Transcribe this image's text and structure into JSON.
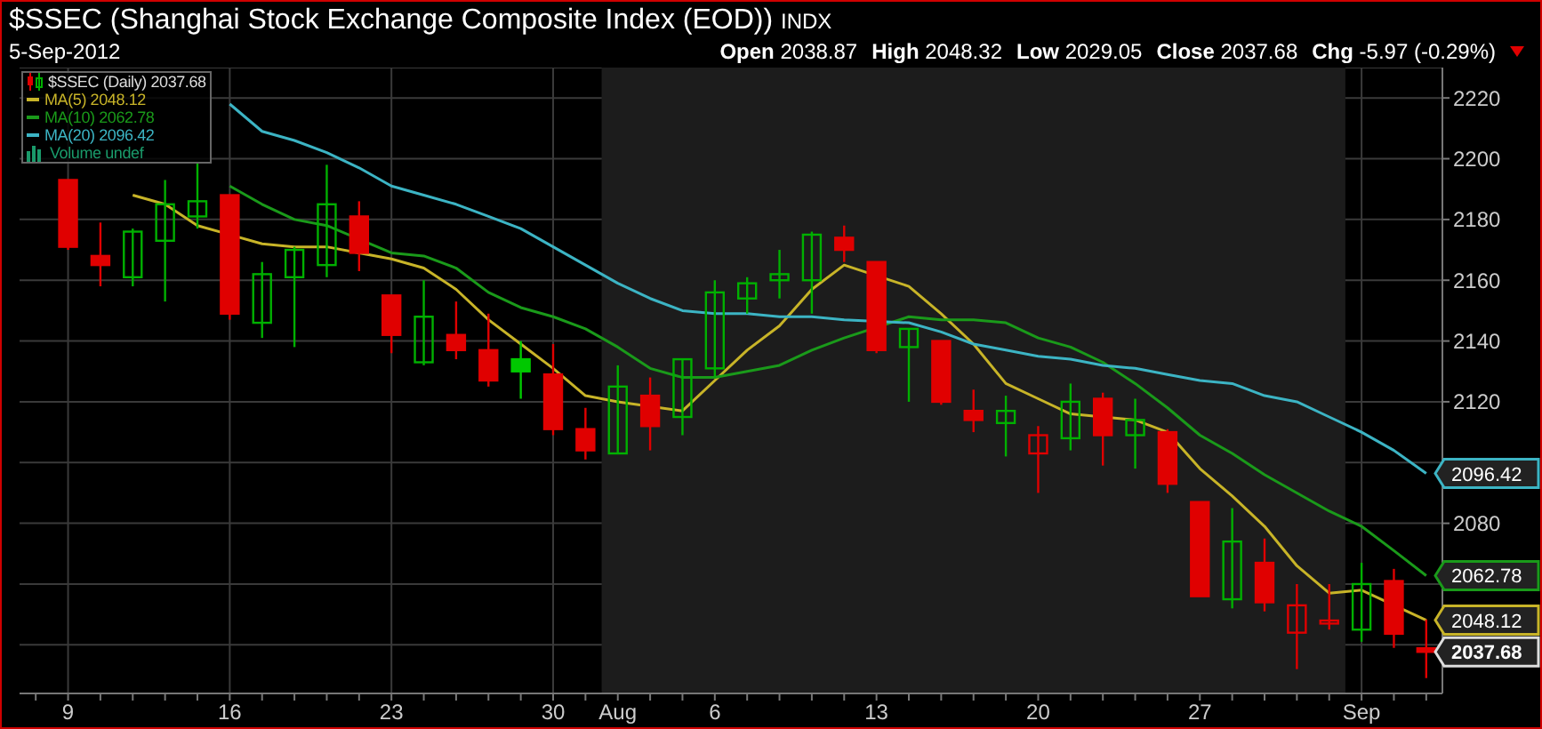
{
  "chart_data": {
    "type": "candlestick",
    "title": "$SSEC (Shanghai Stock Exchange Composite Index (EOD))",
    "subtitle": "5-Sep-2012",
    "annotations": [
      "INDX",
      "Open 2038.87",
      "High 2048.32",
      "Low 2029.05",
      "Close 2037.68",
      "Chg -5.97 (-0.29%)",
      "Volume undef"
    ],
    "categories": [
      null,
      "9",
      null,
      null,
      null,
      null,
      "16",
      null,
      null,
      null,
      null,
      "23",
      null,
      null,
      null,
      null,
      "30",
      null,
      "Aug",
      null,
      null,
      "6",
      null,
      null,
      null,
      null,
      "13",
      null,
      null,
      null,
      null,
      "20",
      null,
      null,
      null,
      null,
      "27",
      null,
      null,
      null,
      null,
      "Sep",
      null,
      null
    ],
    "series": [
      {
        "name": "MA(5) 2048.12",
        "type": "line",
        "color": "#c8b428",
        "values": [
          null,
          null,
          null,
          2188,
          2185,
          2178,
          null,
          2172,
          2171,
          2171,
          2169,
          2167,
          2164,
          2157,
          2147,
          2139,
          2131,
          2122,
          2120,
          null,
          2117,
          2127,
          2137,
          2145,
          2157,
          2165,
          null,
          2158,
          2149,
          2139,
          2126,
          2121,
          2116,
          null,
          2114,
          2110,
          2098,
          2089,
          2079,
          2066,
          2057,
          2058,
          null,
          2048.12
        ],
        "value_labels": [
          null,
          null,
          null,
          null,
          null,
          null,
          null,
          null,
          null,
          null,
          null,
          null,
          null,
          null,
          null,
          null,
          null,
          null,
          null,
          null,
          null,
          null,
          null,
          null,
          null,
          null,
          null,
          null,
          null,
          null,
          null,
          null,
          null,
          null,
          null,
          null,
          null,
          null,
          null,
          null,
          null,
          null,
          null,
          "2048.12"
        ]
      },
      {
        "name": "MA(10) 2062.78",
        "type": "line",
        "color": "#1a9a1a",
        "values": [
          null,
          null,
          null,
          null,
          null,
          null,
          2191,
          2185,
          2180,
          2178,
          null,
          2169,
          2168,
          2164,
          2156,
          2151,
          2148,
          2144,
          2138,
          2131,
          2128,
          2128,
          2130,
          2132,
          2137,
          2141,
          null,
          2148,
          2147,
          2147,
          2146,
          2141,
          2138,
          2133,
          2126,
          2118,
          2109,
          2103,
          2096,
          2090,
          2084,
          2079,
          2071,
          2062.78
        ],
        "value_labels": [
          null,
          null,
          null,
          null,
          null,
          null,
          null,
          null,
          null,
          null,
          null,
          null,
          null,
          null,
          null,
          null,
          null,
          null,
          null,
          null,
          null,
          null,
          null,
          null,
          null,
          null,
          null,
          null,
          null,
          null,
          null,
          null,
          null,
          null,
          null,
          null,
          null,
          null,
          null,
          null,
          null,
          null,
          null,
          "2062.78"
        ]
      },
      {
        "name": "MA(20) 2096.42",
        "type": "line",
        "color": "#3cb4c4",
        "values": [
          null,
          null,
          null,
          null,
          null,
          null,
          2218,
          2209,
          2206,
          2202,
          2197,
          2191,
          2188,
          2185,
          2181,
          2177,
          2171,
          2165,
          2159,
          2154,
          2150,
          2149,
          2149,
          2148,
          2148,
          2147,
          null,
          2146,
          2143,
          2139,
          2137,
          2135,
          2134,
          2132,
          2131,
          2129,
          2127,
          2126,
          2122,
          2120,
          2115,
          2110,
          2104,
          2096.42
        ],
        "value_labels": [
          null,
          null,
          null,
          null,
          null,
          null,
          null,
          null,
          null,
          null,
          null,
          null,
          null,
          null,
          null,
          null,
          null,
          null,
          null,
          null,
          null,
          null,
          null,
          null,
          null,
          null,
          null,
          null,
          null,
          null,
          null,
          null,
          null,
          null,
          null,
          null,
          null,
          null,
          null,
          null,
          null,
          null,
          null,
          "2096.42"
        ]
      },
      {
        "name": "$SSEC (Daily) 2037.68",
        "type": "candlestick",
        "color": "#dddddd",
        "ohlc": [
          null,
          [
            2193,
            2193,
            2170,
            2171
          ],
          [
            2168,
            2179,
            2158,
            2165
          ],
          [
            2161,
            2177,
            2158,
            2176
          ],
          [
            2173,
            2193,
            2153,
            2185
          ],
          [
            2181,
            2199,
            2177,
            2186
          ],
          [
            2188,
            2188,
            2147,
            2149
          ],
          [
            2146,
            2166,
            2141,
            2162
          ],
          [
            2161,
            2171,
            2138,
            2170
          ],
          [
            2165,
            2198,
            2161,
            2185
          ],
          [
            2181,
            2186,
            2163,
            2169
          ],
          [
            2155,
            2155,
            2136,
            2142
          ],
          [
            2133,
            2160,
            2132,
            2148
          ],
          [
            2142,
            2153,
            2134,
            2137
          ],
          [
            2137,
            2149,
            2125,
            2127
          ],
          [
            2134,
            2140,
            2121,
            2130
          ],
          [
            2129,
            2139,
            2109,
            2111
          ],
          [
            2111,
            2118,
            2101,
            2104
          ],
          [
            2103,
            2132,
            2103,
            2125
          ],
          [
            2122,
            2128,
            2104,
            2112
          ],
          [
            2115,
            2134,
            2109,
            2134
          ],
          [
            2131,
            2160,
            2128,
            2156
          ],
          [
            2154,
            2161,
            2149,
            2159
          ],
          [
            2160,
            2170,
            2154,
            2162
          ],
          [
            2160,
            2176,
            2149,
            2175
          ],
          [
            2174,
            2178,
            2166,
            2170
          ],
          [
            2166,
            2166,
            2136,
            2137
          ],
          [
            2138,
            2144,
            2120,
            2144
          ],
          [
            2140,
            2140,
            2119,
            2120
          ],
          [
            2117,
            2124,
            2110,
            2114
          ],
          [
            2113,
            2122,
            2102,
            2117
          ],
          [
            2103,
            2112,
            2090,
            2109
          ],
          [
            2108,
            2126,
            2104,
            2120
          ],
          [
            2121,
            2123,
            2099,
            2109
          ],
          [
            2109,
            2121,
            2098,
            2114
          ],
          [
            2110,
            2111,
            2090,
            2093
          ],
          [
            2087,
            2087,
            2056,
            2056
          ],
          [
            2055,
            2085,
            2052,
            2074
          ],
          [
            2067,
            2075,
            2051,
            2054
          ],
          [
            2044,
            2060,
            2032,
            2053
          ],
          [
            2047,
            2060,
            2045,
            2048
          ],
          [
            2045,
            2067,
            2041,
            2060
          ],
          [
            2061,
            2065,
            2039,
            2043.65
          ],
          [
            2038.87,
            2048.32,
            2029.05,
            2037.68
          ]
        ],
        "colors": [
          null,
          "#e00000",
          "#e00000",
          "#00b000",
          "#00b000",
          "#00b000",
          "#e00000",
          "#00b000",
          "#00b000",
          "#00b000",
          "#e00000",
          "#e00000",
          "#00b000",
          "#e00000",
          "#e00000",
          "#00c800",
          "#e00000",
          "#e00000",
          "#00b000",
          "#e00000",
          "#00b000",
          "#00b000",
          "#00b000",
          "#00b000",
          "#00b000",
          "#e00000",
          "#e00000",
          "#00b000",
          "#e00000",
          "#e00000",
          "#00b000",
          "#e00000",
          "#00b000",
          "#e00000",
          "#00b000",
          "#e00000",
          "#e00000",
          "#00b000",
          "#e00000",
          "#e00000",
          "#e00000",
          "#00b000",
          "#e00000",
          "#e00000"
        ],
        "value_labels": [
          null,
          null,
          null,
          null,
          null,
          null,
          null,
          null,
          null,
          null,
          null,
          null,
          null,
          null,
          null,
          null,
          null,
          null,
          null,
          null,
          null,
          null,
          null,
          null,
          null,
          null,
          null,
          null,
          null,
          null,
          null,
          null,
          null,
          null,
          null,
          null,
          null,
          null,
          null,
          null,
          null,
          null,
          null,
          "2037.68"
        ]
      }
    ],
    "ylim": [
      2024,
      2230
    ],
    "yticks": [
      {
        "value": 2040,
        "label": null
      },
      {
        "value": 2060,
        "label": null
      },
      2080,
      {
        "value": 2100,
        "label": null
      },
      2120,
      2140,
      2160,
      2180,
      2200,
      2220
    ],
    "bands": [
      {
        "axis": "x",
        "from": "Aug",
        "to": "Sep",
        "color": "#1c1c1c"
      }
    ],
    "grid": true,
    "legend": "top left",
    "marker": "none"
  }
}
